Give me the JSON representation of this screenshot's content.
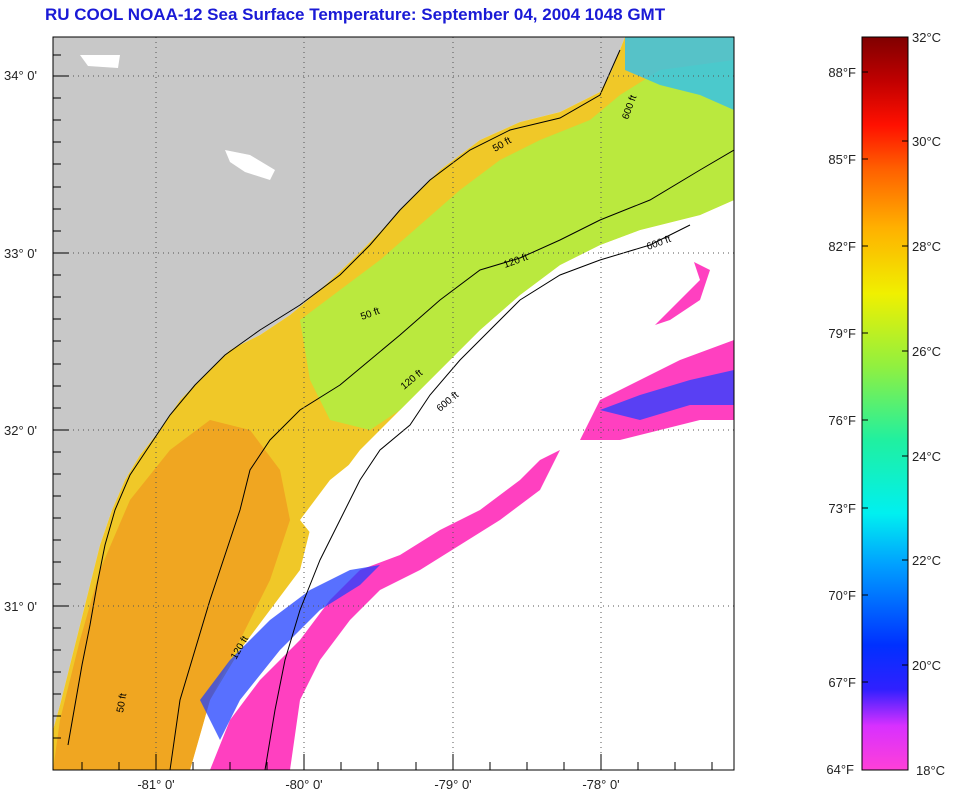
{
  "title": "RU COOL  NOAA-12  Sea Surface Temperature:  September 04, 2004 1048 GMT",
  "map": {
    "lon_ticks": [
      "-81° 0'",
      "-80° 0'",
      "-79° 0'",
      "-78° 0'"
    ],
    "lat_ticks": [
      "34° 0'",
      "33° 0'",
      "32° 0'",
      "31° 0'"
    ],
    "contour_labels": [
      "50 ft",
      "120 ft",
      "600 ft",
      "50 ft",
      "120 ft",
      "600 ft",
      "50 ft",
      "120 ft",
      "600 ft"
    ],
    "colors": {
      "land": "#c8c8c8",
      "cloud": "#ffffff",
      "cold": "#ff40c0"
    }
  },
  "colorbar": {
    "fahrenheit_labels": [
      "88°F",
      "85°F",
      "82°F",
      "79°F",
      "76°F",
      "73°F",
      "70°F",
      "67°F",
      "64°F"
    ],
    "celsius_labels": [
      "32°C",
      "30°C",
      "28°C",
      "26°C",
      "24°C",
      "22°C",
      "20°C",
      "18°C"
    ],
    "range_c": [
      18,
      32
    ],
    "gradient_colors": [
      "#ff40d8",
      "#c030ff",
      "#3020ff",
      "#0040ff",
      "#00a0ff",
      "#00f0f0",
      "#20f0a0",
      "#90f040",
      "#f0f000",
      "#ffb000",
      "#ff6000",
      "#ff1000",
      "#c00000",
      "#800000"
    ]
  }
}
